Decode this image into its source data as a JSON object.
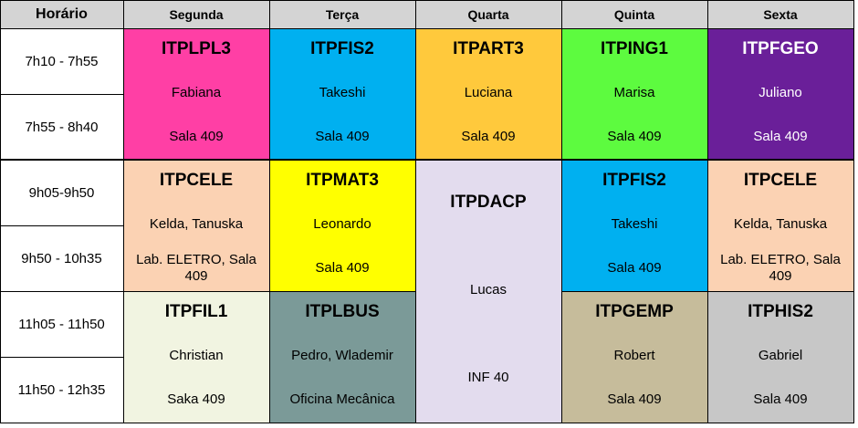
{
  "header": {
    "time_label": "Horário",
    "days": [
      "Segunda",
      "Terça",
      "Quarta",
      "Quinta",
      "Sexta"
    ]
  },
  "times": [
    "7h10 - 7h55",
    "7h55 - 8h40",
    "9h05-9h50",
    "9h50 - 10h35",
    "11h05 - 11h50",
    "11h50 - 12h35"
  ],
  "blocks": [
    {
      "code": "ITPLPL3",
      "lines": [
        "Fabiana",
        "Sala 409"
      ],
      "color": "#ff3fa5",
      "text_color": "#000000"
    },
    {
      "code": "ITPFIS2",
      "lines": [
        "Takeshi",
        "Sala 409"
      ],
      "color": "#00b0f0",
      "text_color": "#000000"
    },
    {
      "code": "ITPART3",
      "lines": [
        "Luciana",
        "Sala 409"
      ],
      "color": "#ffc93c",
      "text_color": "#000000"
    },
    {
      "code": "ITPING1",
      "lines": [
        "Marisa",
        "Sala 409"
      ],
      "color": "#5dfb3f",
      "text_color": "#000000"
    },
    {
      "code": "ITPFGEO",
      "lines": [
        "Juliano",
        "Sala 409"
      ],
      "color": "#6a1f99",
      "text_color": "#ffffff"
    },
    {
      "code": "ITPCELE",
      "lines": [
        "Kelda, Tanuska",
        "Lab. ELETRO, Sala 409"
      ],
      "color": "#fbd2b3",
      "text_color": "#000000"
    },
    {
      "code": "ITPMAT3",
      "lines": [
        "Leonardo",
        "Sala 409"
      ],
      "color": "#ffff00",
      "text_color": "#000000"
    },
    {
      "code": "ITPDACP",
      "lines": [
        "Lucas",
        "INF 40"
      ],
      "color": "#e3dcee",
      "text_color": "#000000"
    },
    {
      "code": "ITPFIS2",
      "lines": [
        "Takeshi",
        "Sala 409"
      ],
      "color": "#00b0f0",
      "text_color": "#000000"
    },
    {
      "code": "ITPCELE",
      "lines": [
        "Kelda, Tanuska",
        "Lab. ELETRO, Sala 409"
      ],
      "color": "#fbd2b3",
      "text_color": "#000000"
    },
    {
      "code": "ITPFIL1",
      "lines": [
        "Christian",
        "Saka 409"
      ],
      "color": "#f1f4e1",
      "text_color": "#000000"
    },
    {
      "code": "ITPLBUS",
      "lines": [
        "Pedro, Wlademir",
        "Oficina Mecânica"
      ],
      "color": "#7b9a98",
      "text_color": "#000000"
    },
    {
      "code": "ITPGEMP",
      "lines": [
        "Robert",
        "Sala 409"
      ],
      "color": "#c6bc9b",
      "text_color": "#000000"
    },
    {
      "code": "ITPHIS2",
      "lines": [
        "Gabriel",
        "Sala 409"
      ],
      "color": "#c7c7c7",
      "text_color": "#000000"
    }
  ]
}
